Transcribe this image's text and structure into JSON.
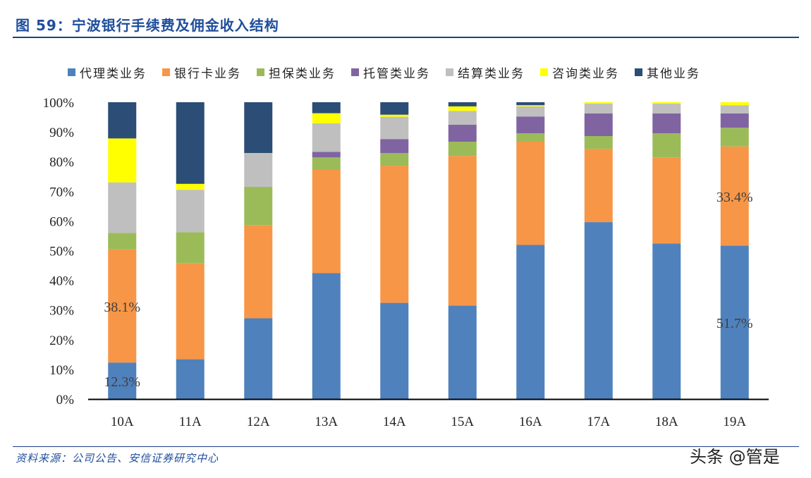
{
  "title": "图 59：宁波银行手续费及佣金收入结构",
  "source": "资料来源：公司公告、安信证券研究中心",
  "watermark": "头条 @管是",
  "chart_data": {
    "type": "bar",
    "stacked": true,
    "categories": [
      "10A",
      "11A",
      "12A",
      "13A",
      "14A",
      "15A",
      "16A",
      "17A",
      "18A",
      "19A"
    ],
    "ylim": [
      0,
      100
    ],
    "yticks": [
      "0%",
      "10%",
      "20%",
      "30%",
      "40%",
      "50%",
      "60%",
      "70%",
      "80%",
      "90%",
      "100%"
    ],
    "legend_position": "top",
    "grid": false,
    "series": [
      {
        "name": "代理类业务",
        "color": "#4f81bd",
        "values": [
          12.3,
          13.4,
          27.2,
          42.4,
          32.4,
          31.5,
          51.9,
          59.6,
          52.4,
          51.7
        ]
      },
      {
        "name": "银行卡业务",
        "color": "#f79646",
        "values": [
          38.1,
          32.4,
          31.4,
          34.8,
          46.2,
          50.4,
          34.8,
          24.7,
          29.0,
          33.4
        ]
      },
      {
        "name": "担保类业务",
        "color": "#9bbb59",
        "values": [
          5.6,
          10.4,
          12.9,
          4.2,
          4.3,
          4.8,
          2.8,
          4.3,
          8.1,
          6.3
        ]
      },
      {
        "name": "托管类业务",
        "color": "#8064a2",
        "values": [
          0,
          0,
          0,
          1.9,
          4.7,
          5.7,
          5.7,
          7.6,
          6.7,
          4.8
        ]
      },
      {
        "name": "结算类业务",
        "color": "#bfbfbf",
        "values": [
          17.0,
          14.3,
          11.4,
          9.6,
          7.5,
          4.7,
          3.4,
          3.3,
          3.3,
          2.8
        ]
      },
      {
        "name": "咨询类业务",
        "color": "#ffff00",
        "values": [
          14.8,
          2.0,
          0,
          3.4,
          0.7,
          1.5,
          0.4,
          0.5,
          0.5,
          1.0
        ]
      },
      {
        "name": "其他业务",
        "color": "#2c4d75",
        "values": [
          12.2,
          27.5,
          17.1,
          3.7,
          4.2,
          1.4,
          1.0,
          0,
          0,
          0
        ]
      }
    ],
    "data_labels": [
      {
        "category": "10A",
        "series": "代理类业务",
        "text": "12.3%"
      },
      {
        "category": "10A",
        "series": "银行卡业务",
        "text": "38.1%"
      },
      {
        "category": "19A",
        "series": "银行卡业务",
        "text": "33.4%"
      },
      {
        "category": "19A",
        "series": "代理类业务",
        "text": "51.7%"
      }
    ]
  }
}
